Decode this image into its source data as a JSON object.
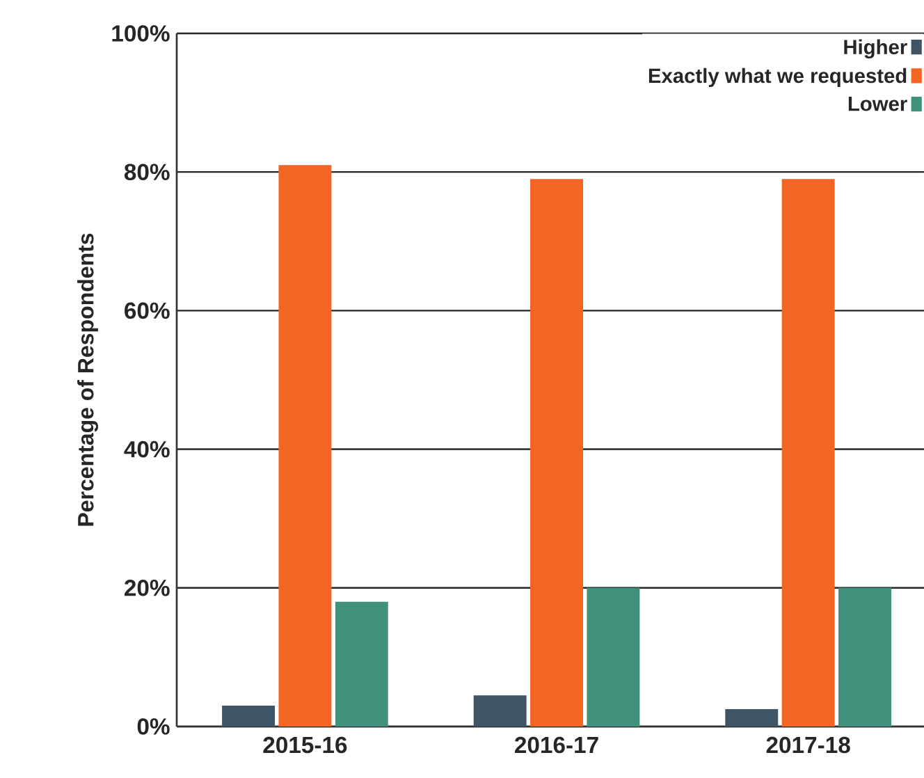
{
  "chart_data": {
    "type": "bar",
    "ylabel": "Percentage of Respondents",
    "categories": [
      "2015-16",
      "2016-17",
      "2017-18"
    ],
    "series": [
      {
        "name": "Higher",
        "color": "#3f5566",
        "values": [
          3,
          4.5,
          2.5
        ]
      },
      {
        "name": "Exactly what we requested",
        "color": "#f26522",
        "values": [
          81,
          79,
          79
        ]
      },
      {
        "name": "Lower",
        "color": "#40917b",
        "values": [
          18,
          20,
          20
        ]
      }
    ],
    "ylim": [
      0,
      100
    ],
    "yticks": [
      {
        "value": 0,
        "label": "0%"
      },
      {
        "value": 20,
        "label": "20%"
      },
      {
        "value": 40,
        "label": "40%"
      },
      {
        "value": 60,
        "label": "60%"
      },
      {
        "value": 80,
        "label": "80%"
      },
      {
        "value": 100,
        "label": "100%"
      }
    ],
    "grid": "y",
    "legend": "top right"
  }
}
